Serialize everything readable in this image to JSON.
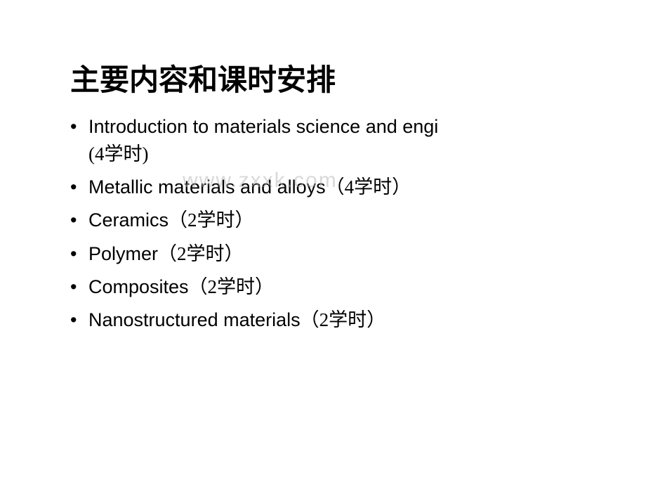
{
  "slide": {
    "title": "主要内容和课时安排",
    "title_fontsize": 42,
    "title_color": "#000000",
    "bullets": [
      {
        "text_en": "Introduction to materials science and engi",
        "text_cn": "(4学时)",
        "inline": false
      },
      {
        "text_en": "Metallic materials and alloys",
        "text_cn": "（4学时）",
        "inline": true
      },
      {
        "text_en": "Ceramics",
        "text_cn": "（2学时）",
        "inline": true
      },
      {
        "text_en": "Polymer",
        "text_cn": "（2学时）",
        "inline": true
      },
      {
        "text_en": "Composites",
        "text_cn": "（2学时）",
        "inline": true
      },
      {
        "text_en": "Nanostructured materials",
        "text_cn": "（2学时）",
        "inline": true
      }
    ],
    "bullet_fontsize": 27,
    "bullet_color": "#000000",
    "background_color": "#ffffff",
    "watermark": "www.zxxk.com",
    "watermark_color": "rgba(180,180,180,0.5)"
  }
}
